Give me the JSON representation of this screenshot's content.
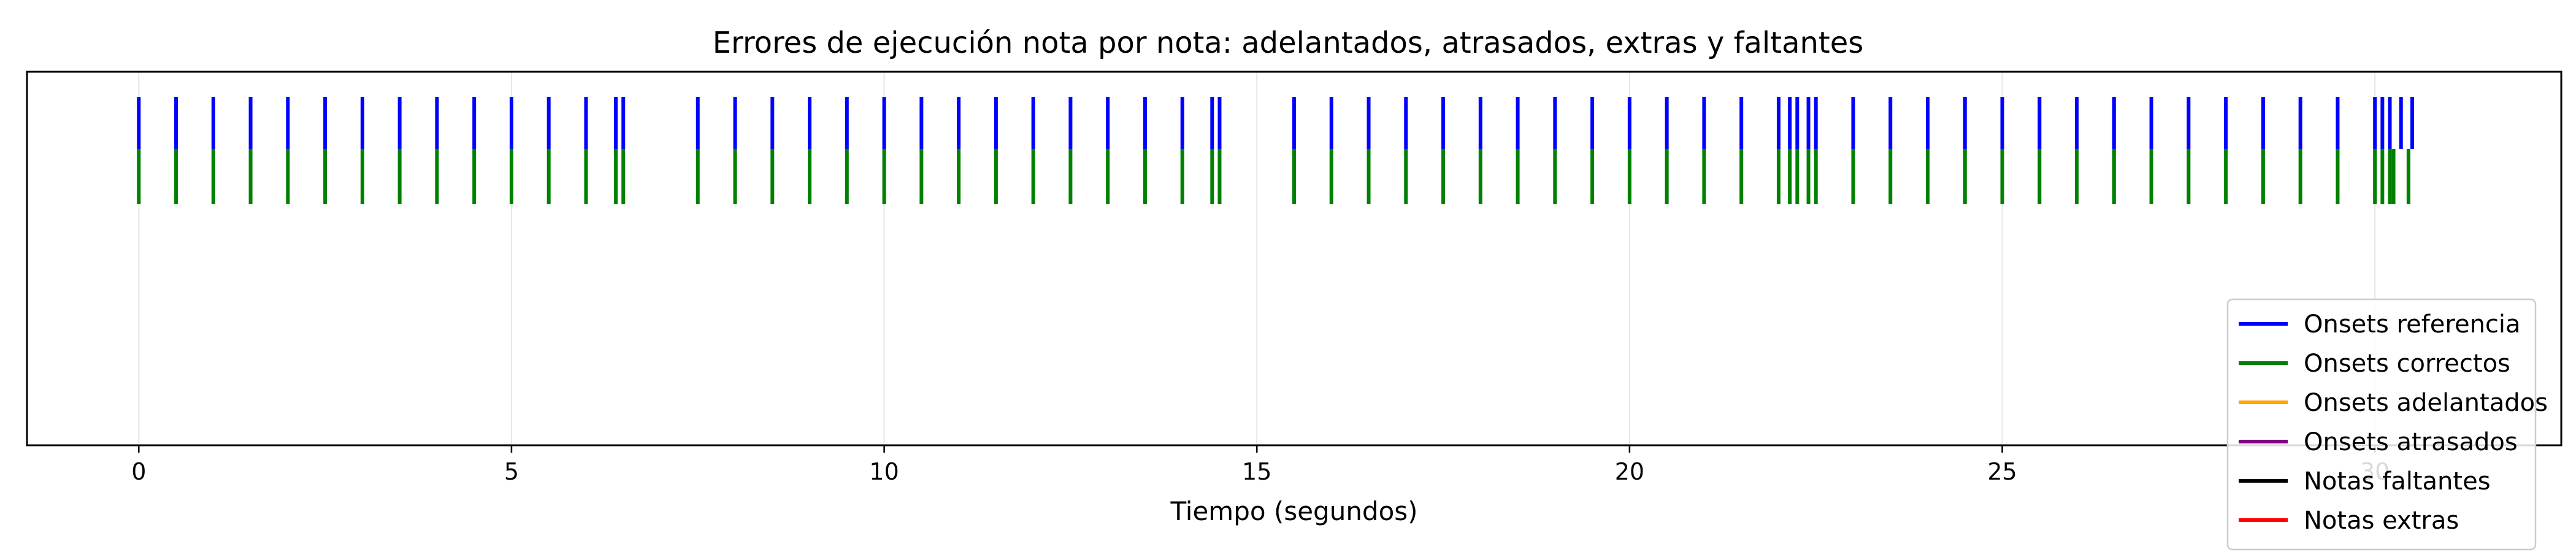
{
  "chart_data": {
    "type": "eventplot",
    "title": "Errores de ejecución nota por nota: adelantados, atrasados, extras y faltantes",
    "xlabel": "Tiempo (segundos)",
    "ylabel": "",
    "xlim": [
      -1.5,
      32.5
    ],
    "ylim": [
      0,
      1
    ],
    "xticks": [
      0,
      5,
      10,
      15,
      20,
      25,
      30
    ],
    "grid": "vertical",
    "legend_position": "bottom-right",
    "series": [
      {
        "name": "Onsets referencia",
        "color": "#0000ff",
        "row": "top",
        "x": [
          0,
          0.5,
          1.0,
          1.5,
          2.0,
          2.5,
          3.0,
          3.5,
          4.0,
          4.5,
          5.0,
          5.5,
          6.0,
          6.4,
          6.5,
          7.5,
          8.0,
          8.5,
          9.0,
          9.5,
          10.0,
          10.5,
          11.0,
          11.5,
          12.0,
          12.5,
          13.0,
          13.5,
          14.0,
          14.4,
          14.5,
          15.5,
          16.0,
          16.5,
          17.0,
          17.5,
          18.0,
          18.5,
          19.0,
          19.5,
          20.0,
          20.5,
          21.0,
          21.5,
          22.0,
          22.15,
          22.25,
          22.4,
          22.5,
          23.0,
          23.5,
          24.0,
          24.5,
          25.0,
          25.5,
          26.0,
          26.5,
          27.0,
          27.5,
          28.0,
          28.5,
          29.0,
          29.5,
          30.0,
          30.1,
          30.2,
          30.35,
          30.5
        ]
      },
      {
        "name": "Onsets correctos",
        "color": "#008000",
        "row": "second",
        "x": [
          0,
          0.5,
          1.0,
          1.5,
          2.0,
          2.5,
          3.0,
          3.5,
          4.0,
          4.5,
          5.0,
          5.5,
          6.0,
          6.4,
          6.5,
          7.5,
          8.0,
          8.5,
          9.0,
          9.5,
          10.0,
          10.5,
          11.0,
          11.5,
          12.0,
          12.5,
          13.0,
          13.5,
          14.0,
          14.4,
          14.5,
          15.5,
          16.0,
          16.5,
          17.0,
          17.5,
          18.0,
          18.5,
          19.0,
          19.5,
          20.0,
          20.5,
          21.0,
          21.5,
          22.0,
          22.15,
          22.25,
          22.4,
          22.5,
          23.0,
          23.5,
          24.0,
          24.5,
          25.0,
          25.5,
          26.0,
          26.5,
          27.0,
          27.5,
          28.0,
          28.5,
          29.0,
          29.5,
          30.0,
          30.1,
          30.2,
          30.25,
          30.45
        ]
      },
      {
        "name": "Onsets adelantados",
        "color": "#ffa500",
        "x": []
      },
      {
        "name": "Onsets atrasados",
        "color": "#800080",
        "x": []
      },
      {
        "name": "Notas faltantes",
        "color": "#000000",
        "x": []
      },
      {
        "name": "Notas extras",
        "color": "#ff0000",
        "x": []
      }
    ]
  }
}
